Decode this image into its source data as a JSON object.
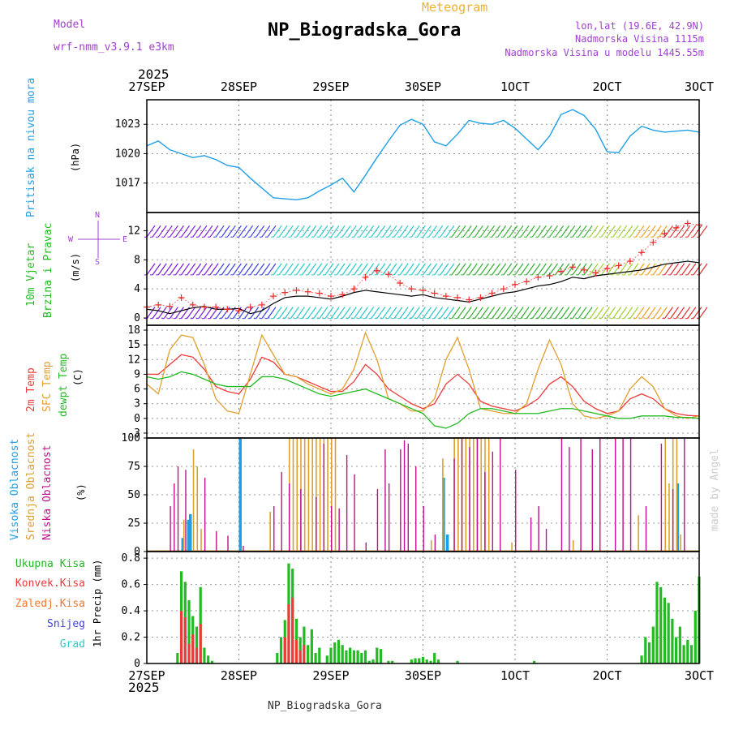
{
  "header": {
    "meteogram_label": "Meteogram",
    "station_title": "NP_Biogradska_Gora",
    "model_label": "Model",
    "model_name": "wrf-nmm_v3.9.1 e3km",
    "coords": "lon,lat (19.6E, 42.9N)",
    "elevation": "Nadmorska Visina 1115m",
    "model_elevation": "Nadmorska Visina u modelu 1445.55m",
    "footer_title": "NP_Biogradska_Gora",
    "watermark": "made by Angel"
  },
  "colors": {
    "pressure": "#1ea0e6",
    "mean_wind": "#000000",
    "gust": "#f02828",
    "temp2m": "#ee3a3a",
    "sfc_temp": "#e0a030",
    "dewpoint": "#22bb22",
    "high_cloud": "#1ea0e6",
    "mid_cloud": "#dba030",
    "low_cloud": "#c0108a",
    "precip_total": "#22bb22",
    "precip_conv": "#ee3a3a",
    "precip_frozen": "#f07830",
    "snow": "#4040e0",
    "hail": "#30c8c8",
    "model": "#a040d0",
    "meteogram": "#f0b030"
  },
  "time_axis": {
    "year_top": "2025",
    "year_bottom": "2025",
    "labels": [
      "27SEP",
      "28SEP",
      "29SEP",
      "30SEP",
      "1OCT",
      "2OCT",
      "3OCT"
    ]
  },
  "chart_data": [
    {
      "type": "line",
      "title": "Pritisak na nivou mora",
      "ylabel": "(hPa)",
      "ylim": [
        1014,
        1025.5
      ],
      "yticks": [
        "1017",
        "1020",
        "1023"
      ],
      "x_unit": "hours from 27SEP 00UTC",
      "x": [
        0,
        3,
        6,
        9,
        12,
        15,
        18,
        21,
        24,
        27,
        30,
        33,
        36,
        39,
        42,
        45,
        48,
        51,
        54,
        57,
        60,
        63,
        66,
        69,
        72,
        75,
        78,
        81,
        84,
        87,
        90,
        93,
        96,
        99,
        102,
        105,
        108,
        111,
        114,
        117,
        120,
        123,
        126,
        129,
        132,
        135,
        138,
        141,
        144
      ],
      "series": [
        {
          "name": "pressure",
          "values": [
            1020.8,
            1021.3,
            1020.4,
            1020.0,
            1019.6,
            1019.8,
            1019.4,
            1018.8,
            1018.6,
            1017.5,
            1016.5,
            1015.5,
            1015.4,
            1015.3,
            1015.5,
            1016.2,
            1016.8,
            1017.5,
            1016.1,
            1017.8,
            1019.6,
            1021.3,
            1022.9,
            1023.5,
            1023.0,
            1021.2,
            1020.8,
            1022.0,
            1023.4,
            1023.1,
            1023.0,
            1023.4,
            1022.6,
            1021.5,
            1020.4,
            1021.8,
            1024.0,
            1024.5,
            1023.9,
            1022.5,
            1020.2,
            1020.1,
            1021.8,
            1022.8,
            1022.4,
            1022.2,
            1022.3,
            1022.4,
            1022.2
          ]
        }
      ]
    },
    {
      "type": "line",
      "title": "10m Vjetar Brzina i Pravac",
      "ylabel": "(m/s)",
      "ylim": [
        -1,
        14.5
      ],
      "yticks": [
        "0",
        "4",
        "8",
        "12"
      ],
      "x_unit": "hours from 27SEP 00UTC",
      "x": [
        0,
        3,
        6,
        9,
        12,
        15,
        18,
        21,
        24,
        27,
        30,
        33,
        36,
        39,
        42,
        45,
        48,
        51,
        54,
        57,
        60,
        63,
        66,
        69,
        72,
        75,
        78,
        81,
        84,
        87,
        90,
        93,
        96,
        99,
        102,
        105,
        108,
        111,
        114,
        117,
        120,
        123,
        126,
        129,
        132,
        135,
        138,
        141,
        144
      ],
      "series": [
        {
          "name": "mean wind",
          "values": [
            1.2,
            1.0,
            0.6,
            1.0,
            1.4,
            1.6,
            1.2,
            1.2,
            1.3,
            0.6,
            1.0,
            2.0,
            2.8,
            3.0,
            3.0,
            2.8,
            2.6,
            3.0,
            3.5,
            3.8,
            3.6,
            3.4,
            3.2,
            3.0,
            3.2,
            2.8,
            2.6,
            2.4,
            2.2,
            2.6,
            3.0,
            3.4,
            3.6,
            4.0,
            4.4,
            4.6,
            5.0,
            5.6,
            5.4,
            5.8,
            6.0,
            6.2,
            6.4,
            6.6,
            7.0,
            7.4,
            7.6,
            7.8,
            7.6
          ]
        },
        {
          "name": "gust",
          "values": [
            1.5,
            1.8,
            1.6,
            2.8,
            1.8,
            1.5,
            1.5,
            1.2,
            1.0,
            1.5,
            1.8,
            3.0,
            3.5,
            3.8,
            3.6,
            3.4,
            3.0,
            3.2,
            4.0,
            5.6,
            6.5,
            6.0,
            4.8,
            4.0,
            3.8,
            3.4,
            3.0,
            2.8,
            2.5,
            2.8,
            3.4,
            4.0,
            4.6,
            5.0,
            5.6,
            5.8,
            6.4,
            7.0,
            6.6,
            6.2,
            6.8,
            7.2,
            7.8,
            9.0,
            10.4,
            11.6,
            12.4,
            13.0,
            12.8
          ]
        }
      ],
      "compass": [
        "N",
        "S",
        "W",
        "E"
      ]
    },
    {
      "type": "line",
      "title": "2m Temp / SFC Temp / dewpt Temp",
      "ylabel": "(C)",
      "ylim": [
        -4,
        19
      ],
      "yticks": [
        "-3",
        "0",
        "3",
        "6",
        "9",
        "12",
        "15",
        "18"
      ],
      "x_unit": "hours from 27SEP 00UTC",
      "x": [
        0,
        3,
        6,
        9,
        12,
        15,
        18,
        21,
        24,
        27,
        30,
        33,
        36,
        39,
        42,
        45,
        48,
        51,
        54,
        57,
        60,
        63,
        66,
        69,
        72,
        75,
        78,
        81,
        84,
        87,
        90,
        93,
        96,
        99,
        102,
        105,
        108,
        111,
        114,
        117,
        120,
        123,
        126,
        129,
        132,
        135,
        138,
        141,
        144
      ],
      "series": [
        {
          "name": "2m Temp",
          "values": [
            9,
            9,
            11,
            13,
            12.5,
            10,
            6.5,
            5.5,
            5,
            8,
            12.5,
            11.5,
            9,
            8.5,
            7.5,
            6.5,
            5.5,
            5.5,
            7.5,
            11,
            9,
            6,
            4.5,
            3,
            2,
            3,
            7,
            9,
            7,
            3.5,
            2.5,
            2,
            1.5,
            2.5,
            4,
            7,
            8.5,
            6.5,
            3.5,
            2,
            1,
            1.5,
            4,
            5,
            4,
            2,
            1,
            0.6,
            0.5
          ]
        },
        {
          "name": "SFC Temp",
          "values": [
            7,
            5,
            14,
            17,
            16.5,
            11,
            4,
            1.5,
            1,
            9,
            17,
            13,
            9,
            8.5,
            7,
            6,
            5,
            6,
            10,
            17.5,
            12,
            4,
            3,
            1.5,
            1.5,
            4,
            12,
            16.5,
            10,
            2,
            1.5,
            1,
            1,
            3,
            10,
            16,
            11,
            3,
            0.5,
            0,
            0.5,
            1.5,
            6,
            8.5,
            6.5,
            2,
            0.5,
            0,
            0.5
          ]
        },
        {
          "name": "dewpt Temp",
          "values": [
            8.5,
            8,
            8.5,
            9.5,
            9,
            8,
            7,
            6.5,
            6.5,
            6.5,
            8.5,
            8.5,
            8,
            7,
            6,
            5,
            4.5,
            5,
            5.5,
            6,
            5,
            4,
            3,
            2,
            1,
            -1.5,
            -2,
            -1,
            1,
            2,
            2,
            1.5,
            1,
            1,
            1,
            1.5,
            2,
            2,
            1.5,
            1,
            0.5,
            0,
            0,
            0.5,
            0.5,
            0.5,
            0.2,
            0.2,
            0
          ]
        }
      ]
    },
    {
      "type": "bar",
      "title": "Visoka / Srednja / Niska Oblacnost",
      "ylabel": "(%)",
      "ylim": [
        0,
        100
      ],
      "yticks": [
        "0",
        "25",
        "50",
        "75",
        "100"
      ],
      "x_unit": "hours from 27SEP 00UTC",
      "series": [
        {
          "name": "Visoka Oblacnost",
          "x": [
            9,
            10.5,
            11,
            24,
            77,
            78,
            138
          ],
          "values": [
            12,
            28,
            33,
            100,
            65,
            15,
            60
          ]
        },
        {
          "name": "Srednja Oblacnost",
          "x": [
            9.5,
            12,
            13,
            14,
            32,
            37,
            38,
            39,
            40,
            41,
            42,
            43,
            44,
            45,
            46,
            47,
            48,
            49,
            74,
            77,
            80,
            81,
            82,
            83,
            84,
            85,
            86,
            87,
            88,
            89,
            95,
            111,
            128,
            135,
            136,
            137,
            138,
            139
          ],
          "values": [
            28,
            90,
            75,
            20,
            35,
            100,
            100,
            100,
            100,
            100,
            100,
            100,
            100,
            100,
            100,
            100,
            100,
            100,
            10,
            82,
            100,
            100,
            100,
            100,
            100,
            100,
            100,
            100,
            100,
            100,
            8,
            10,
            32,
            100,
            60,
            100,
            100,
            15
          ]
        },
        {
          "name": "Niska Oblacnost",
          "x": [
            6,
            7,
            8,
            10,
            15,
            18,
            21,
            25,
            33,
            35,
            37,
            40,
            44,
            46,
            48,
            50,
            52,
            54,
            57,
            60,
            62,
            63,
            66,
            67,
            68,
            70,
            72,
            75,
            80,
            82,
            84,
            86,
            88,
            90,
            92,
            96,
            100,
            102,
            104,
            108,
            110,
            113,
            116,
            118,
            122,
            124,
            126,
            130,
            134,
            137,
            140
          ],
          "values": [
            40,
            60,
            75,
            72,
            65,
            18,
            14,
            5,
            40,
            70,
            60,
            55,
            48,
            95,
            40,
            38,
            85,
            68,
            8,
            55,
            90,
            60,
            90,
            98,
            95,
            75,
            40,
            15,
            82,
            100,
            92,
            100,
            70,
            88,
            100,
            72,
            30,
            40,
            20,
            100,
            92,
            100,
            90,
            100,
            100,
            100,
            100,
            40,
            95,
            55,
            100
          ]
        }
      ]
    },
    {
      "type": "bar",
      "title": "1hr Precip",
      "ylabel": "1hr Precip (mm)",
      "ylim": [
        0,
        0.85
      ],
      "yticks": [
        "0",
        "0.2",
        "0.4",
        "0.6",
        "0.8"
      ],
      "legend": [
        "Ukupna Kisa",
        "Konvek.Kisa",
        "Zaledj.Kisa",
        "Snijeg",
        "Grad"
      ],
      "x_unit": "hours from 27SEP 00UTC",
      "series": [
        {
          "name": "Ukupna Kisa",
          "x": [
            8,
            9,
            10,
            11,
            12,
            13,
            14,
            15,
            16,
            17,
            34,
            35,
            36,
            37,
            38,
            39,
            40,
            41,
            42,
            43,
            44,
            45,
            47,
            48,
            49,
            50,
            51,
            52,
            53,
            54,
            55,
            56,
            57,
            58,
            59,
            60,
            61,
            63,
            64,
            69,
            70,
            71,
            72,
            73,
            74,
            75,
            76,
            81,
            101,
            129,
            130,
            131,
            132,
            133,
            134,
            135,
            136,
            137,
            138,
            139,
            140,
            141,
            142,
            143,
            144
          ],
          "values": [
            0.08,
            0.7,
            0.62,
            0.48,
            0.36,
            0.28,
            0.58,
            0.12,
            0.06,
            0.02,
            0.08,
            0.2,
            0.33,
            0.76,
            0.72,
            0.34,
            0.2,
            0.28,
            0.14,
            0.26,
            0.08,
            0.12,
            0.06,
            0.12,
            0.16,
            0.18,
            0.14,
            0.1,
            0.12,
            0.1,
            0.1,
            0.08,
            0.1,
            0.02,
            0.03,
            0.12,
            0.11,
            0.02,
            0.02,
            0.03,
            0.04,
            0.04,
            0.05,
            0.03,
            0.02,
            0.08,
            0.03,
            0.02,
            0.02,
            0.06,
            0.2,
            0.16,
            0.28,
            0.62,
            0.58,
            0.5,
            0.46,
            0.34,
            0.2,
            0.28,
            0.14,
            0.18,
            0.14,
            0.4,
            0.66
          ]
        },
        {
          "name": "Konvek.Kisa",
          "x": [
            9,
            10,
            11,
            12,
            13,
            14,
            36,
            37,
            38,
            39,
            40,
            41
          ],
          "values": [
            0.4,
            0.35,
            0.15,
            0.22,
            0.12,
            0.3,
            0.2,
            0.45,
            0.5,
            0.18,
            0.1,
            0.14
          ]
        },
        {
          "name": "Zaledj.Kisa",
          "x": [],
          "values": []
        },
        {
          "name": "Snijeg",
          "x": [],
          "values": []
        },
        {
          "name": "Grad",
          "x": [],
          "values": []
        }
      ]
    }
  ]
}
